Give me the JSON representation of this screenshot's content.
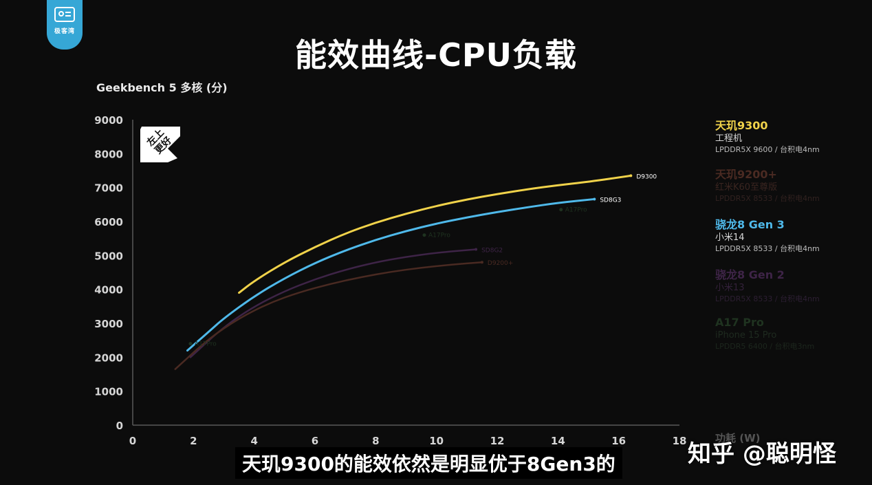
{
  "logo": {
    "icon": "channel-logo-icon",
    "text": "极客湾",
    "color": "#36a7d6"
  },
  "header": {
    "title": "能效曲线-CPU负载"
  },
  "badge": {
    "text": "左上\n更好",
    "icon": "up-left-arrow-icon"
  },
  "x_unit": "功耗 (W)",
  "subtitle": "天玑9300的能效依然是明显优于8Gen3的",
  "watermark": "知乎 @聪明怪",
  "legend": [
    {
      "name": "天玑9300",
      "sub": "工程机",
      "spec": "LPDDR5X 9600 / 台积电4nm",
      "color": "#f0d24a",
      "sub_color": "#d8d8d8",
      "spec_color": "#bdbdbd"
    },
    {
      "name": "天玑9200+",
      "sub": "红米K60至尊版",
      "spec": "LPDDR5X 8533 / 台积电4nm",
      "color": "#4a2a22",
      "sub_color": "#3a2520",
      "spec_color": "#322220"
    },
    {
      "name": "骁龙8 Gen 3",
      "sub": "小米14",
      "spec": "LPDDR5X 8533 / 台积电4nm",
      "color": "#4fb9ea",
      "sub_color": "#d8d8d8",
      "spec_color": "#bdbdbd"
    },
    {
      "name": "骁龙8 Gen 2",
      "sub": "小米13",
      "spec": "LPDDR5X 8533 / 台积电4nm",
      "color": "#3e2447",
      "sub_color": "#33213a",
      "spec_color": "#2d1f33"
    },
    {
      "name": "A17 Pro",
      "sub": "iPhone 15 Pro",
      "spec": "LPDDR5 6400 / 台积电3nm",
      "color": "#1f3320",
      "sub_color": "#1e2a1f",
      "spec_color": "#1c261d"
    }
  ],
  "chart_data": {
    "type": "line",
    "ylabel": "Geekbench 5 多核 (分)",
    "xlabel": "功耗 (W)",
    "xlim": [
      0,
      18
    ],
    "ylim": [
      0,
      9000
    ],
    "xticks": [
      "0",
      "2",
      "4",
      "6",
      "8",
      "10",
      "12",
      "14",
      "16",
      "18"
    ],
    "yticks": [
      "0",
      "1000",
      "2000",
      "3000",
      "4000",
      "5000",
      "6000",
      "7000",
      "8000",
      "9000"
    ],
    "grid": false,
    "legend_position": "right",
    "series": [
      {
        "name": "D9300",
        "label": "D9300",
        "color": "#f0d24a",
        "width": 3,
        "dim": false,
        "x": [
          3.5,
          4.0,
          5.0,
          6.0,
          7.0,
          8.0,
          9.0,
          10.0,
          11.0,
          12.0,
          13.0,
          14.0,
          15.0,
          16.4
        ],
        "y": [
          3900,
          4250,
          4800,
          5250,
          5650,
          5970,
          6230,
          6460,
          6650,
          6810,
          6950,
          7070,
          7170,
          7350
        ]
      },
      {
        "name": "SD8G3",
        "label": "SD8G3",
        "color": "#4fb9ea",
        "width": 3,
        "dim": false,
        "x": [
          1.8,
          2.5,
          3.0,
          4.0,
          5.0,
          6.0,
          7.0,
          8.0,
          9.0,
          10.0,
          11.0,
          12.0,
          13.0,
          14.0,
          15.2
        ],
        "y": [
          2200,
          2750,
          3150,
          3800,
          4330,
          4780,
          5150,
          5460,
          5720,
          5940,
          6120,
          6280,
          6420,
          6550,
          6660
        ]
      },
      {
        "name": "SD8G2",
        "label": "SD8G2",
        "color": "#3e2447",
        "width": 2.5,
        "dim": true,
        "x": [
          1.9,
          3.0,
          4.0,
          5.0,
          6.0,
          7.0,
          8.0,
          9.0,
          10.0,
          11.3
        ],
        "y": [
          2000,
          2900,
          3500,
          3950,
          4300,
          4580,
          4800,
          4960,
          5080,
          5180
        ]
      },
      {
        "name": "D9200+",
        "label": "D9200+",
        "color": "#4a2a22",
        "width": 2.5,
        "dim": true,
        "x": [
          1.4,
          2.5,
          3.5,
          4.5,
          5.5,
          6.5,
          7.5,
          8.5,
          9.5,
          10.5,
          11.5
        ],
        "y": [
          1650,
          2550,
          3150,
          3600,
          3920,
          4160,
          4360,
          4520,
          4640,
          4730,
          4800
        ]
      }
    ],
    "points": [
      {
        "name": "A17Pro-low",
        "label": "A17Pro",
        "x": 1.9,
        "y": 2400,
        "color": "#1f3320"
      },
      {
        "name": "A17Pro-mid",
        "label": "A17Pro",
        "x": 9.6,
        "y": 5600,
        "color": "#1f3320"
      },
      {
        "name": "A17Pro-high",
        "label": "A17Pro",
        "x": 14.1,
        "y": 6350,
        "color": "#1f3320"
      }
    ]
  }
}
